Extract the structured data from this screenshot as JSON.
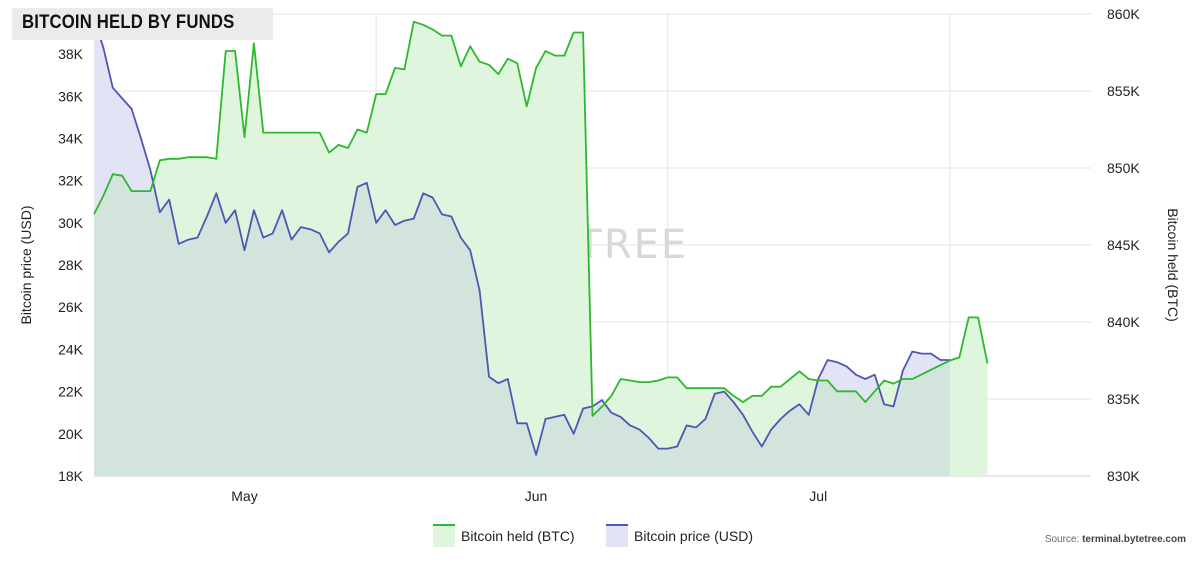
{
  "title": "BITCOIN HELD BY FUNDS",
  "source_label": "Source:",
  "source_site": "terminal.bytetree.com",
  "watermark": "BYTETREE",
  "colors": {
    "held_line": "#2db82d",
    "held_fill": "#dff5dd",
    "price_line": "#4f56b3",
    "price_fill": "#e2e3f5",
    "overlap_fill": "#d3e4dd",
    "grid": "#e3e3e3"
  },
  "chart_data": {
    "type": "area",
    "x_tick_labels": [
      "May",
      "Jun",
      "Jul"
    ],
    "left_axis": {
      "label": "Bitcoin price (USD)",
      "ticks": [
        "18K",
        "20K",
        "22K",
        "24K",
        "26K",
        "28K",
        "30K",
        "32K",
        "34K",
        "36K",
        "38K"
      ],
      "ylim": [
        18000,
        39900
      ]
    },
    "right_axis": {
      "label": "Bitcoin held (BTC)",
      "ticks": [
        "830K",
        "835K",
        "840K",
        "845K",
        "850K",
        "855K",
        "860K"
      ],
      "ylim": [
        830000,
        860000
      ]
    },
    "x_range": {
      "start": "2022-04-15",
      "end": "2022-07-30"
    },
    "grid": true,
    "legend_position": "bottom-center",
    "series": [
      {
        "name": "Bitcoin held (BTC)",
        "axis": "right",
        "points": [
          [
            "2022-04-15",
            847000
          ],
          [
            "2022-04-16",
            848200
          ],
          [
            "2022-04-17",
            849600
          ],
          [
            "2022-04-18",
            849500
          ],
          [
            "2022-04-19",
            848500
          ],
          [
            "2022-04-20",
            848500
          ],
          [
            "2022-04-21",
            848500
          ],
          [
            "2022-04-22",
            850500
          ],
          [
            "2022-04-23",
            850600
          ],
          [
            "2022-04-24",
            850600
          ],
          [
            "2022-04-25",
            850700
          ],
          [
            "2022-04-27",
            850700
          ],
          [
            "2022-04-28",
            850600
          ],
          [
            "2022-04-29",
            857600
          ],
          [
            "2022-04-30",
            857600
          ],
          [
            "2022-05-01",
            852000
          ],
          [
            "2022-05-02",
            858100
          ],
          [
            "2022-05-03",
            852300
          ],
          [
            "2022-05-04",
            852300
          ],
          [
            "2022-05-06",
            852300
          ],
          [
            "2022-05-08",
            852300
          ],
          [
            "2022-05-09",
            852300
          ],
          [
            "2022-05-10",
            851000
          ],
          [
            "2022-05-11",
            851500
          ],
          [
            "2022-05-12",
            851300
          ],
          [
            "2022-05-13",
            852500
          ],
          [
            "2022-05-14",
            852300
          ],
          [
            "2022-05-15",
            854800
          ],
          [
            "2022-05-16",
            854800
          ],
          [
            "2022-05-17",
            856500
          ],
          [
            "2022-05-18",
            856400
          ],
          [
            "2022-05-19",
            859500
          ],
          [
            "2022-05-20",
            859300
          ],
          [
            "2022-05-21",
            859000
          ],
          [
            "2022-05-22",
            858600
          ],
          [
            "2022-05-23",
            858600
          ],
          [
            "2022-05-24",
            856600
          ],
          [
            "2022-05-25",
            857900
          ],
          [
            "2022-05-26",
            856900
          ],
          [
            "2022-05-27",
            856700
          ],
          [
            "2022-05-28",
            856100
          ],
          [
            "2022-05-29",
            857100
          ],
          [
            "2022-05-30",
            856800
          ],
          [
            "2022-05-31",
            854000
          ],
          [
            "2022-06-01",
            856500
          ],
          [
            "2022-06-02",
            857600
          ],
          [
            "2022-06-03",
            857300
          ],
          [
            "2022-06-04",
            857300
          ],
          [
            "2022-06-05",
            858800
          ],
          [
            "2022-06-06",
            858800
          ],
          [
            "2022-06-07",
            833900
          ],
          [
            "2022-06-08",
            834500
          ],
          [
            "2022-06-09",
            835200
          ],
          [
            "2022-06-10",
            836300
          ],
          [
            "2022-06-11",
            836200
          ],
          [
            "2022-06-12",
            836100
          ],
          [
            "2022-06-13",
            836100
          ],
          [
            "2022-06-14",
            836200
          ],
          [
            "2022-06-15",
            836400
          ],
          [
            "2022-06-16",
            836400
          ],
          [
            "2022-06-17",
            835700
          ],
          [
            "2022-06-18",
            835700
          ],
          [
            "2022-06-19",
            835700
          ],
          [
            "2022-06-20",
            835700
          ],
          [
            "2022-06-21",
            835700
          ],
          [
            "2022-06-22",
            835200
          ],
          [
            "2022-06-23",
            834800
          ],
          [
            "2022-06-24",
            835200
          ],
          [
            "2022-06-25",
            835200
          ],
          [
            "2022-06-26",
            835800
          ],
          [
            "2022-06-27",
            835800
          ],
          [
            "2022-06-28",
            836300
          ],
          [
            "2022-06-29",
            836800
          ],
          [
            "2022-06-30",
            836300
          ],
          [
            "2022-07-01",
            836200
          ],
          [
            "2022-07-02",
            836200
          ],
          [
            "2022-07-03",
            835500
          ],
          [
            "2022-07-04",
            835500
          ],
          [
            "2022-07-05",
            835500
          ],
          [
            "2022-07-06",
            834800
          ],
          [
            "2022-07-07",
            835500
          ],
          [
            "2022-07-08",
            836200
          ],
          [
            "2022-07-09",
            836000
          ],
          [
            "2022-07-10",
            836300
          ],
          [
            "2022-07-11",
            836300
          ],
          [
            "2022-07-12",
            836600
          ],
          [
            "2022-07-13",
            836900
          ],
          [
            "2022-07-14",
            837200
          ],
          [
            "2022-07-15",
            837500
          ],
          [
            "2022-07-16",
            837700
          ],
          [
            "2022-07-17",
            840300
          ],
          [
            "2022-07-18",
            840300
          ],
          [
            "2022-07-19",
            837300
          ]
        ]
      },
      {
        "name": "Bitcoin price (USD)",
        "axis": "left",
        "points": [
          [
            "2022-04-15",
            39700
          ],
          [
            "2022-04-16",
            38300
          ],
          [
            "2022-04-17",
            36400
          ],
          [
            "2022-04-18",
            35900
          ],
          [
            "2022-04-19",
            35400
          ],
          [
            "2022-04-20",
            34000
          ],
          [
            "2022-04-21",
            32500
          ],
          [
            "2022-04-22",
            30500
          ],
          [
            "2022-04-23",
            31100
          ],
          [
            "2022-04-24",
            29000
          ],
          [
            "2022-04-25",
            29200
          ],
          [
            "2022-04-26",
            29300
          ],
          [
            "2022-04-27",
            30300
          ],
          [
            "2022-04-28",
            31400
          ],
          [
            "2022-04-29",
            30000
          ],
          [
            "2022-04-30",
            30600
          ],
          [
            "2022-05-01",
            28700
          ],
          [
            "2022-05-02",
            30600
          ],
          [
            "2022-05-03",
            29300
          ],
          [
            "2022-05-04",
            29500
          ],
          [
            "2022-05-05",
            30600
          ],
          [
            "2022-05-06",
            29200
          ],
          [
            "2022-05-07",
            29800
          ],
          [
            "2022-05-08",
            29700
          ],
          [
            "2022-05-09",
            29500
          ],
          [
            "2022-05-10",
            28600
          ],
          [
            "2022-05-11",
            29100
          ],
          [
            "2022-05-12",
            29500
          ],
          [
            "2022-05-13",
            31700
          ],
          [
            "2022-05-14",
            31900
          ],
          [
            "2022-05-15",
            30000
          ],
          [
            "2022-05-16",
            30600
          ],
          [
            "2022-05-17",
            29900
          ],
          [
            "2022-05-18",
            30100
          ],
          [
            "2022-05-19",
            30200
          ],
          [
            "2022-05-20",
            31400
          ],
          [
            "2022-05-21",
            31200
          ],
          [
            "2022-05-22",
            30400
          ],
          [
            "2022-05-23",
            30300
          ],
          [
            "2022-05-24",
            29300
          ],
          [
            "2022-05-25",
            28700
          ],
          [
            "2022-05-26",
            26800
          ],
          [
            "2022-05-27",
            22700
          ],
          [
            "2022-05-28",
            22400
          ],
          [
            "2022-05-29",
            22600
          ],
          [
            "2022-05-30",
            20500
          ],
          [
            "2022-05-31",
            20500
          ],
          [
            "2022-06-01",
            19000
          ],
          [
            "2022-06-02",
            20700
          ],
          [
            "2022-06-03",
            20800
          ],
          [
            "2022-06-04",
            20900
          ],
          [
            "2022-06-05",
            20000
          ],
          [
            "2022-06-06",
            21200
          ],
          [
            "2022-06-07",
            21300
          ],
          [
            "2022-06-08",
            21600
          ],
          [
            "2022-06-09",
            21000
          ],
          [
            "2022-06-10",
            20800
          ],
          [
            "2022-06-11",
            20400
          ],
          [
            "2022-06-12",
            20200
          ],
          [
            "2022-06-13",
            19800
          ],
          [
            "2022-06-14",
            19300
          ],
          [
            "2022-06-15",
            19300
          ],
          [
            "2022-06-16",
            19400
          ],
          [
            "2022-06-17",
            20400
          ],
          [
            "2022-06-18",
            20300
          ],
          [
            "2022-06-19",
            20700
          ],
          [
            "2022-06-20",
            21900
          ],
          [
            "2022-06-21",
            22000
          ],
          [
            "2022-06-22",
            21500
          ],
          [
            "2022-06-23",
            20900
          ],
          [
            "2022-06-24",
            20100
          ],
          [
            "2022-06-25",
            19400
          ],
          [
            "2022-06-26",
            20200
          ],
          [
            "2022-06-27",
            20700
          ],
          [
            "2022-06-28",
            21100
          ],
          [
            "2022-06-29",
            21400
          ],
          [
            "2022-06-30",
            20900
          ],
          [
            "2022-07-01",
            22600
          ],
          [
            "2022-07-02",
            23500
          ],
          [
            "2022-07-03",
            23400
          ],
          [
            "2022-07-04",
            23200
          ],
          [
            "2022-07-05",
            22800
          ],
          [
            "2022-07-06",
            22600
          ],
          [
            "2022-07-07",
            22800
          ],
          [
            "2022-07-08",
            21400
          ],
          [
            "2022-07-09",
            21300
          ],
          [
            "2022-07-10",
            23000
          ],
          [
            "2022-07-11",
            23900
          ],
          [
            "2022-07-12",
            23800
          ],
          [
            "2022-07-13",
            23800
          ],
          [
            "2022-07-14",
            23500
          ],
          [
            "2022-07-15",
            23500
          ]
        ]
      }
    ]
  }
}
